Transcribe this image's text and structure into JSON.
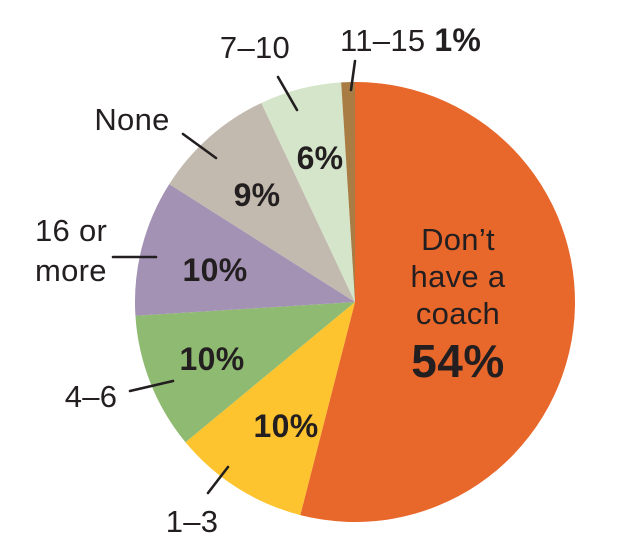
{
  "chart_data": {
    "type": "pie",
    "title": "",
    "unit": "%",
    "direction": "clockwise",
    "start_angle_deg": 0,
    "legend_position": "none",
    "text_color": "#231F20",
    "background_color": "#FFFFFF",
    "slices": [
      {
        "label": "Don’t have a coach",
        "value": 54,
        "value_label": "54%",
        "color": "#E8672B",
        "label_placement": "inside"
      },
      {
        "label": "1–3",
        "value": 10,
        "value_label": "10%",
        "color": "#FDC42F",
        "label_placement": "outside"
      },
      {
        "label": "4–6",
        "value": 10,
        "value_label": "10%",
        "color": "#8EBA71",
        "label_placement": "outside"
      },
      {
        "label": "16 or more",
        "value": 10,
        "value_label": "10%",
        "color": "#A392B4",
        "label_placement": "outside"
      },
      {
        "label": "None",
        "value": 9,
        "value_label": "9%",
        "color": "#C2B9AF",
        "label_placement": "outside"
      },
      {
        "label": "7–10",
        "value": 6,
        "value_label": "6%",
        "color": "#D5E5CA",
        "label_placement": "outside"
      },
      {
        "label": "11–15",
        "value": 1,
        "value_label": "1%",
        "color": "#A87C42",
        "label_placement": "outside-inline"
      }
    ]
  }
}
